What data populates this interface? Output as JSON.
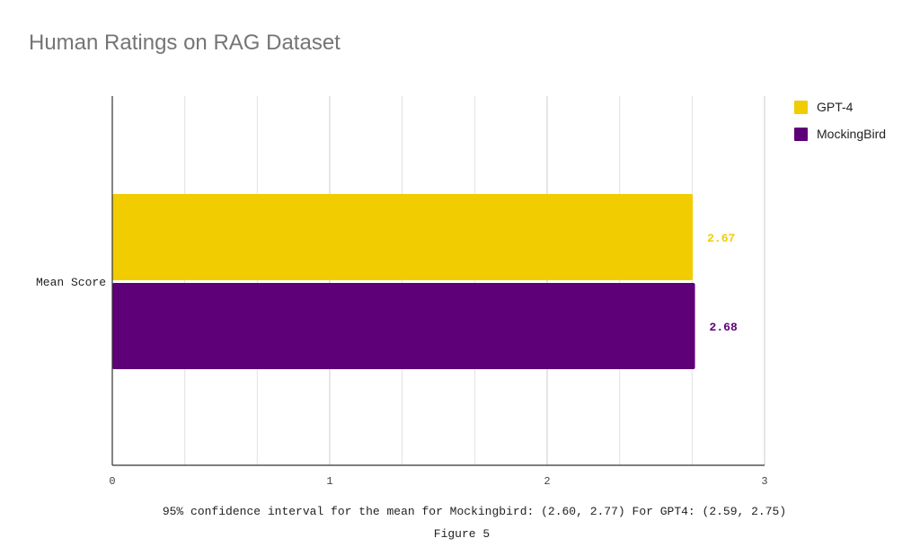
{
  "chart_data": {
    "type": "bar",
    "orientation": "horizontal",
    "title": "Human Ratings on RAG Dataset",
    "categories": [
      "Mean Score"
    ],
    "series": [
      {
        "name": "GPT-4",
        "values": [
          2.67
        ],
        "label": "2.67",
        "color": "#f1cc00"
      },
      {
        "name": "MockingBird",
        "values": [
          2.68
        ],
        "label": "2.68",
        "color": "#5e0077"
      }
    ],
    "xlim": [
      0,
      3
    ],
    "x_ticks": [
      "0",
      "1",
      "2",
      "3"
    ],
    "grid": true,
    "legend_position": "top-right"
  },
  "caption": {
    "note": "95% confidence interval for the mean for Mockingbird: (2.60, 2.77) For GPT4: (2.59, 2.75)",
    "figure": "Figure 5"
  }
}
